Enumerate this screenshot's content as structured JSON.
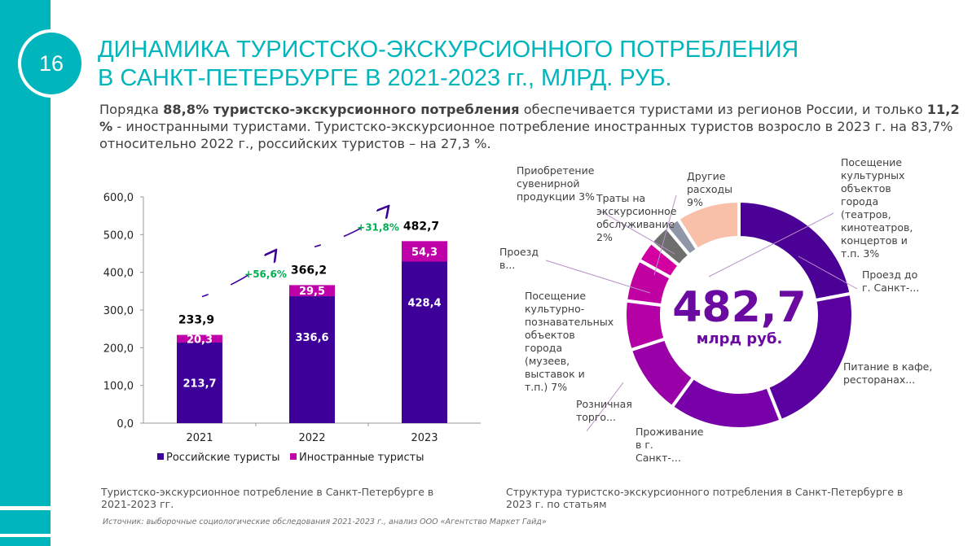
{
  "slide_number": "16",
  "title_line1": "ДИНАМИКА ТУРИСТСКО-ЭКСКУРСИОННОГО ПОТРЕБЛЕНИЯ",
  "title_line2": "В САНКТ-ПЕТЕРБУРГЕ В 2021-2023 гг., МЛРД. РУБ.",
  "intro": {
    "p1": "Порядка ",
    "b1": "88,8% туристско-экскурсионного потребления",
    "p2": " обеспечивается туристами из регионов России, и только ",
    "b2": "11,2 %",
    "p3": " - иностранными туристами. Туристско-экскурсионное потребление иностранных туристов возросло в 2023 г. на 83,7% относительно 2022 г., российских туристов – на 27,3 %."
  },
  "colors": {
    "teal": "#00b5bb",
    "russian": "#3d0099",
    "foreign": "#c000a8",
    "growth": "#00b050"
  },
  "chart_data": [
    {
      "type": "bar",
      "stacked": true,
      "categories": [
        "2021",
        "2022",
        "2023"
      ],
      "series": [
        {
          "name": "Российские туристы",
          "values": [
            213.7,
            336.6,
            428.4
          ],
          "labels": [
            "213,7",
            "336,6",
            "428,4"
          ]
        },
        {
          "name": "Иностранные туристы",
          "values": [
            20.3,
            29.5,
            54.3
          ],
          "labels": [
            "20,3",
            "29,5",
            "54,3"
          ]
        }
      ],
      "totals": [
        "233,9",
        "366,2",
        "482,7"
      ],
      "growth": [
        "+56,6%",
        "+31,8%"
      ],
      "ylim": [
        0,
        600
      ],
      "yticks": [
        "0,0",
        "100,0",
        "200,0",
        "300,0",
        "400,0",
        "500,0",
        "600,0"
      ],
      "legend": "bottom",
      "caption": "Туристско-экскурсионное потребление в Санкт-Петербурге в 2021-2023 гг."
    },
    {
      "type": "pie",
      "donut": true,
      "center_value": "482,7",
      "center_unit": "млрд руб.",
      "slices": [
        {
          "label": "Проезд до г. Санкт-...",
          "value": 22,
          "color": "#4b0096"
        },
        {
          "label": "Питание в кафе, ресторанах...",
          "value": 22,
          "color": "#5a00a0"
        },
        {
          "label": "Проживание в г. Санкт-...",
          "value": 16,
          "color": "#7800a8"
        },
        {
          "label": "Розничная торго...",
          "value": 10,
          "color": "#9a00a8"
        },
        {
          "label": "Посещение культурно-познавательных объектов города (музеев, выставок и т.п.) 7%",
          "value": 7,
          "color": "#b400a4"
        },
        {
          "label": "Проезд в...",
          "value": 6,
          "color": "#c000a0"
        },
        {
          "label": "Посещение культурных объектов города (театров, кинотеатров, концертов и т.п. 3%",
          "value": 3,
          "color": "#d200a0"
        },
        {
          "label": "Приобретение сувенирной продукции 3%",
          "value": 3,
          "color": "#6e6e6e"
        },
        {
          "label": "Траты на экскурсионное обслуживание 2%",
          "value": 2,
          "color": "#8e96a8"
        },
        {
          "label": "Другие расходы 9%",
          "value": 9,
          "color": "#f8c0a8"
        }
      ],
      "caption": "Структура туристско-экскурсионного потребления в Санкт-Петербурге в 2023 г. по статьям"
    }
  ],
  "source": "Источник: выборочные социологические обследования 2021-2023 г., анализ ООО «Агентство Маркет Гайд»"
}
